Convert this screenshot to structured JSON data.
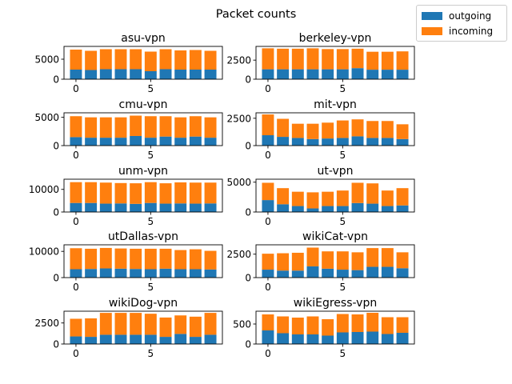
{
  "chart_data": {
    "type": "bar",
    "stacked": true,
    "title": "Packet counts",
    "legend": {
      "placement": "top-right",
      "entries": [
        {
          "name": "outgoing",
          "color": "#1f77b4"
        },
        {
          "name": "incoming",
          "color": "#ff7f0e"
        }
      ]
    },
    "x": [
      0,
      1,
      2,
      3,
      4,
      5,
      6,
      7,
      8,
      9
    ],
    "xticks": [
      0,
      5
    ],
    "subplots": [
      {
        "title": "asu-vpn",
        "ylim": [
          0,
          8200
        ],
        "yticks": [
          0,
          5000
        ],
        "outgoing": [
          2400,
          2300,
          2500,
          2500,
          2500,
          2000,
          2500,
          2400,
          2400,
          2400
        ],
        "incoming": [
          5000,
          4800,
          5000,
          5000,
          5000,
          4900,
          5000,
          4800,
          4900,
          4700
        ]
      },
      {
        "title": "berkeley-vpn",
        "ylim": [
          0,
          4300
        ],
        "yticks": [
          0,
          2500
        ],
        "outgoing": [
          1300,
          1300,
          1300,
          1300,
          1300,
          1300,
          1450,
          1250,
          1250,
          1250
        ],
        "incoming": [
          2750,
          2700,
          2700,
          2750,
          2650,
          2650,
          2550,
          2350,
          2350,
          2400
        ]
      },
      {
        "title": "cmu-vpn",
        "ylim": [
          0,
          5800
        ],
        "yticks": [
          0,
          5000
        ],
        "outgoing": [
          1500,
          1400,
          1400,
          1400,
          1700,
          1400,
          1600,
          1400,
          1600,
          1400
        ],
        "incoming": [
          3700,
          3600,
          3600,
          3600,
          3600,
          3800,
          3600,
          3600,
          3600,
          3600
        ]
      },
      {
        "title": "mit-vpn",
        "ylim": [
          0,
          3000
        ],
        "yticks": [
          0,
          2500
        ],
        "outgoing": [
          950,
          800,
          700,
          600,
          650,
          700,
          850,
          700,
          700,
          600
        ],
        "incoming": [
          1900,
          1650,
          1300,
          1400,
          1450,
          1600,
          1550,
          1550,
          1550,
          1350
        ]
      },
      {
        "title": "unm-vpn",
        "ylim": [
          0,
          14500
        ],
        "yticks": [
          0,
          10000
        ],
        "outgoing": [
          4000,
          4000,
          3700,
          3800,
          3600,
          4000,
          3700,
          3800,
          3700,
          3800
        ],
        "incoming": [
          9200,
          9200,
          9300,
          9000,
          9100,
          9200,
          9000,
          9300,
          9300,
          9200
        ]
      },
      {
        "title": "ut-vpn",
        "ylim": [
          0,
          5500
        ],
        "yticks": [
          0,
          5000
        ],
        "outgoing": [
          2000,
          1300,
          1000,
          600,
          1000,
          1000,
          1500,
          1400,
          1000,
          1100
        ],
        "incoming": [
          2900,
          2700,
          2400,
          2700,
          2400,
          2600,
          3400,
          3400,
          2600,
          2900
        ]
      },
      {
        "title": "utDallas-vpn",
        "ylim": [
          0,
          12500
        ],
        "yticks": [
          0,
          10000
        ],
        "outgoing": [
          3200,
          3300,
          3500,
          3400,
          3300,
          3200,
          3400,
          3200,
          3200,
          3100
        ],
        "incoming": [
          8000,
          7700,
          7800,
          7700,
          7700,
          7800,
          7600,
          7300,
          7600,
          7100
        ]
      },
      {
        "title": "wikiCat-vpn",
        "ylim": [
          0,
          3500
        ],
        "yticks": [
          0,
          2500
        ],
        "outgoing": [
          850,
          750,
          750,
          1200,
          950,
          850,
          800,
          1150,
          1150,
          1000
        ],
        "incoming": [
          1700,
          1850,
          1900,
          2000,
          1850,
          1950,
          1900,
          2000,
          2000,
          1700
        ]
      },
      {
        "title": "wikiDog-vpn",
        "ylim": [
          0,
          3900
        ],
        "yticks": [
          0,
          2500
        ],
        "outgoing": [
          900,
          850,
          1100,
          1100,
          1100,
          1100,
          850,
          1200,
          850,
          1100
        ],
        "incoming": [
          2100,
          2200,
          2600,
          2600,
          2600,
          2500,
          2300,
          2200,
          2400,
          2600
        ]
      },
      {
        "title": "wikiEgress-vpn",
        "ylim": [
          0,
          820
        ],
        "yticks": [
          0,
          500
        ],
        "outgoing": [
          340,
          270,
          240,
          240,
          210,
          290,
          300,
          310,
          250,
          280
        ],
        "incoming": [
          400,
          420,
          420,
          450,
          410,
          460,
          440,
          470,
          420,
          390
        ]
      }
    ]
  }
}
